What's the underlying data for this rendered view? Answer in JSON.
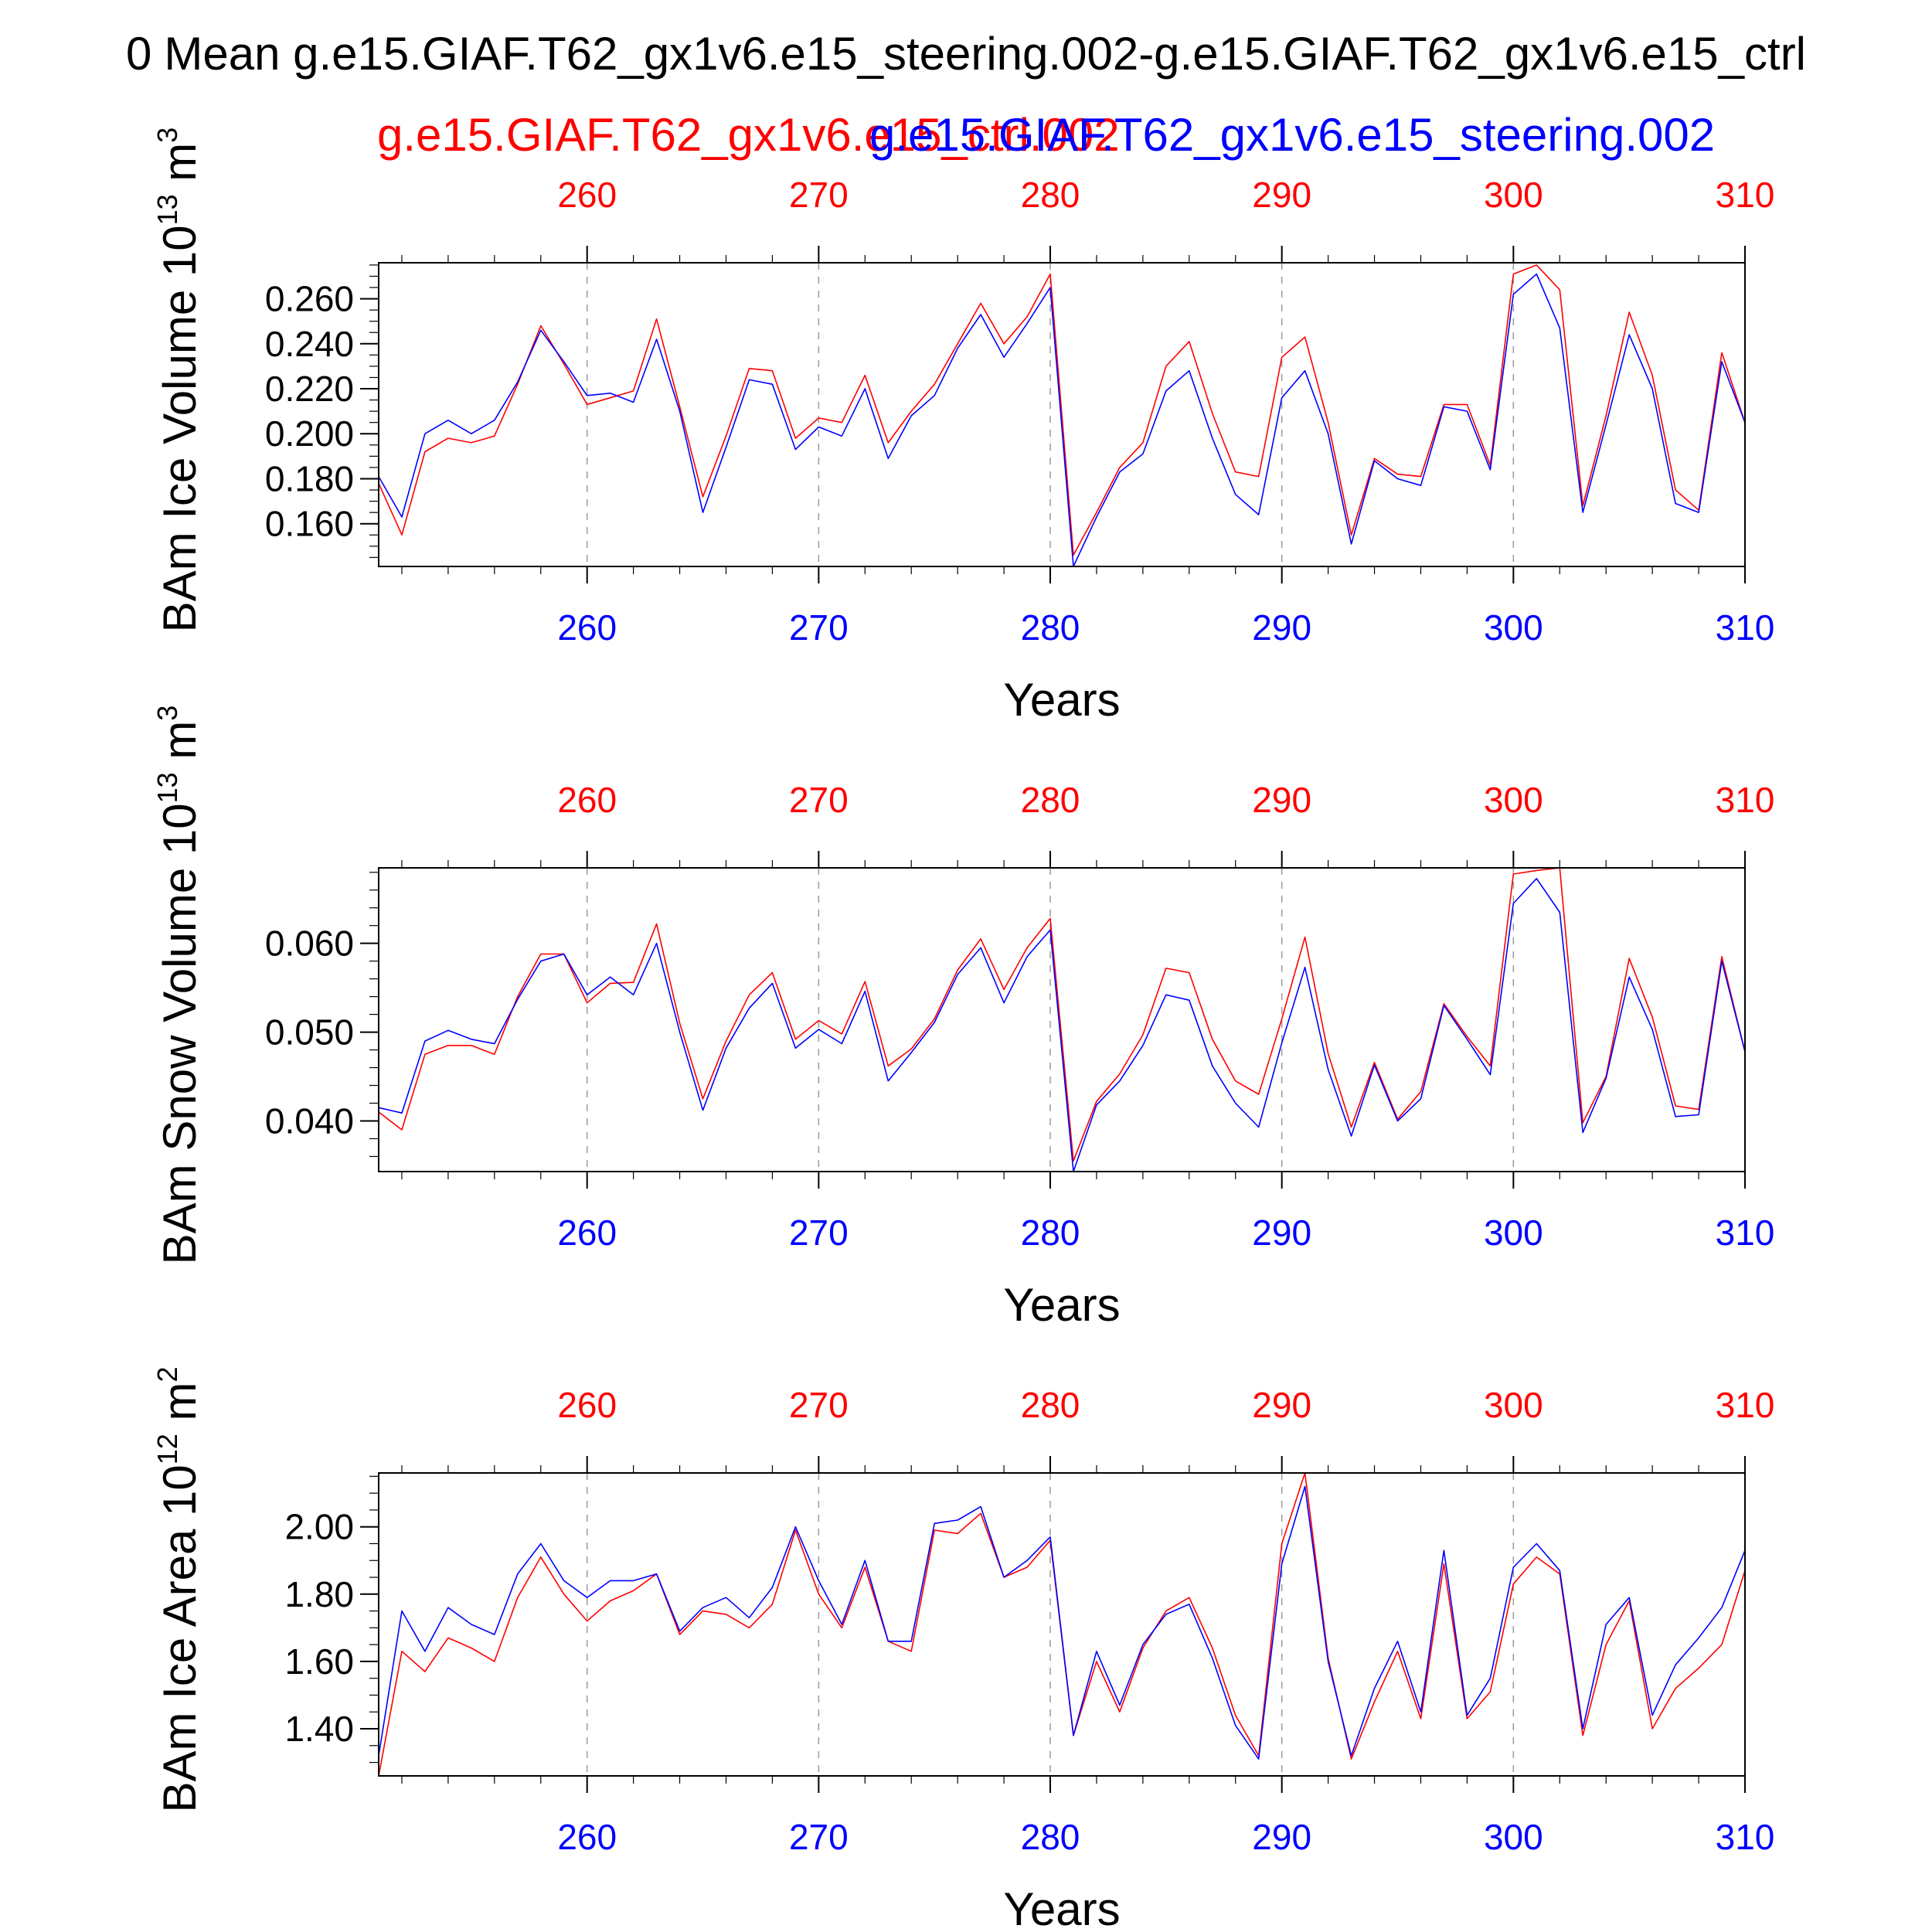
{
  "title": "Mean g.e15.GIAF.T62_gx1v6.e15_steering.002-g.e15.GIAF.T62_gx1v6.e15_ctrl",
  "title_prefix_fragment": "0",
  "subtitles": {
    "ctrl": "g.e15.GIAF.T62_gx1v6.e15_ctrl.002",
    "steering": "g.e15.GIAF.T62_gx1v6.e15_steering.002"
  },
  "colors": {
    "ctrl": "#ff0000",
    "steering": "#0000ff",
    "axis": "#000000",
    "grid": "#9a9a9a"
  },
  "chart_data": [
    {
      "type": "line",
      "ylabel_main": "BAm Ice Volume 10",
      "ylabel_exp": "13",
      "ylabel_unit": " m",
      "ylabel_unit_exp": "3",
      "xlabel": "Years",
      "xlim": [
        251,
        310
      ],
      "ylim": [
        0.141,
        0.276
      ],
      "yticks": [
        0.16,
        0.18,
        0.2,
        0.22,
        0.24,
        0.26
      ],
      "yticklabels": [
        "0.160",
        "0.180",
        "0.200",
        "0.220",
        "0.240",
        "0.260"
      ],
      "yminor_step": 0.005,
      "xticks": [
        260,
        270,
        280,
        290,
        300,
        310
      ],
      "xticklabels": [
        "260",
        "270",
        "280",
        "290",
        "300",
        "310"
      ],
      "grid": "dashed vertical at major x ticks",
      "x": [
        251,
        252,
        253,
        254,
        255,
        256,
        257,
        258,
        259,
        260,
        261,
        262,
        263,
        264,
        265,
        266,
        267,
        268,
        269,
        270,
        271,
        272,
        273,
        274,
        275,
        276,
        277,
        278,
        279,
        280,
        281,
        282,
        283,
        284,
        285,
        286,
        287,
        288,
        289,
        290,
        291,
        292,
        293,
        294,
        295,
        296,
        297,
        298,
        299,
        300,
        301,
        302,
        303,
        304,
        305,
        306,
        307,
        308,
        309,
        310
      ],
      "series": [
        {
          "name": "g.e15.GIAF.T62_gx1v6.e15_ctrl.002",
          "key": "ctrl",
          "values": [
            0.178,
            0.155,
            0.192,
            0.198,
            0.196,
            0.199,
            0.222,
            0.248,
            0.231,
            0.213,
            0.216,
            0.219,
            0.251,
            0.212,
            0.172,
            0.199,
            0.229,
            0.228,
            0.198,
            0.207,
            0.205,
            0.226,
            0.196,
            0.21,
            0.222,
            0.24,
            0.258,
            0.24,
            0.252,
            0.271,
            0.146,
            0.165,
            0.185,
            0.196,
            0.23,
            0.241,
            0.209,
            0.183,
            0.181,
            0.234,
            0.243,
            0.205,
            0.155,
            0.189,
            0.182,
            0.181,
            0.213,
            0.213,
            0.186,
            0.271,
            0.275,
            0.264,
            0.168,
            0.208,
            0.254,
            0.226,
            0.175,
            0.166,
            0.236,
            0.205
          ]
        },
        {
          "name": "g.e15.GIAF.T62_gx1v6.e15_steering.002",
          "key": "steering",
          "values": [
            0.181,
            0.163,
            0.2,
            0.206,
            0.2,
            0.206,
            0.223,
            0.246,
            0.232,
            0.217,
            0.218,
            0.214,
            0.242,
            0.21,
            0.165,
            0.194,
            0.224,
            0.222,
            0.193,
            0.203,
            0.199,
            0.22,
            0.189,
            0.208,
            0.217,
            0.238,
            0.253,
            0.234,
            0.249,
            0.265,
            0.141,
            0.163,
            0.183,
            0.191,
            0.219,
            0.228,
            0.198,
            0.173,
            0.164,
            0.216,
            0.228,
            0.2,
            0.151,
            0.188,
            0.18,
            0.177,
            0.212,
            0.21,
            0.184,
            0.262,
            0.271,
            0.247,
            0.165,
            0.204,
            0.244,
            0.22,
            0.169,
            0.165,
            0.232,
            0.205
          ]
        }
      ]
    },
    {
      "type": "line",
      "ylabel_main": "BAm Snow Volume 10",
      "ylabel_exp": "13",
      "ylabel_unit": " m",
      "ylabel_unit_exp": "3",
      "xlabel": "Years",
      "xlim": [
        251,
        310
      ],
      "ylim": [
        0.0343,
        0.0685
      ],
      "yticks": [
        0.04,
        0.05,
        0.06
      ],
      "yticklabels": [
        "0.040",
        "0.050",
        "0.060"
      ],
      "yminor_step": 0.002,
      "xticks": [
        260,
        270,
        280,
        290,
        300,
        310
      ],
      "xticklabels": [
        "260",
        "270",
        "280",
        "290",
        "300",
        "310"
      ],
      "grid": "dashed vertical at major x ticks",
      "x": [
        251,
        252,
        253,
        254,
        255,
        256,
        257,
        258,
        259,
        260,
        261,
        262,
        263,
        264,
        265,
        266,
        267,
        268,
        269,
        270,
        271,
        272,
        273,
        274,
        275,
        276,
        277,
        278,
        279,
        280,
        281,
        282,
        283,
        284,
        285,
        286,
        287,
        288,
        289,
        290,
        291,
        292,
        293,
        294,
        295,
        296,
        297,
        298,
        299,
        300,
        301,
        302,
        303,
        304,
        305,
        306,
        307,
        308,
        309,
        310
      ],
      "series": [
        {
          "name": "g.e15.GIAF.T62_gx1v6.e15_ctrl.002",
          "key": "ctrl",
          "values": [
            0.041,
            0.039,
            0.0475,
            0.0485,
            0.0485,
            0.0475,
            0.054,
            0.0588,
            0.0588,
            0.0533,
            0.0555,
            0.0556,
            0.0622,
            0.051,
            0.0425,
            0.049,
            0.0542,
            0.0567,
            0.0492,
            0.0513,
            0.0498,
            0.0557,
            0.0462,
            0.0481,
            0.0515,
            0.057,
            0.0605,
            0.0548,
            0.0595,
            0.0628,
            0.0355,
            0.0422,
            0.0453,
            0.0497,
            0.0572,
            0.0567,
            0.0492,
            0.0445,
            0.043,
            0.0515,
            0.0607,
            0.0476,
            0.0393,
            0.0466,
            0.0402,
            0.0433,
            0.0532,
            0.0495,
            0.0462,
            0.0678,
            0.0682,
            0.0685,
            0.0398,
            0.045,
            0.0583,
            0.0517,
            0.0417,
            0.0413,
            0.0585,
            0.0478
          ]
        },
        {
          "name": "g.e15.GIAF.T62_gx1v6.e15_steering.002",
          "key": "steering",
          "values": [
            0.0415,
            0.0409,
            0.049,
            0.0502,
            0.0492,
            0.0487,
            0.0537,
            0.058,
            0.0588,
            0.0542,
            0.0562,
            0.0542,
            0.06,
            0.05,
            0.0412,
            0.0482,
            0.0527,
            0.0555,
            0.0482,
            0.0503,
            0.0487,
            0.0546,
            0.0445,
            0.0477,
            0.0511,
            0.0565,
            0.0595,
            0.0533,
            0.0585,
            0.0615,
            0.0343,
            0.0418,
            0.0445,
            0.0485,
            0.0542,
            0.0536,
            0.0462,
            0.042,
            0.0393,
            0.0488,
            0.0573,
            0.0458,
            0.0383,
            0.0463,
            0.04,
            0.0425,
            0.053,
            0.0492,
            0.0452,
            0.0645,
            0.0673,
            0.0635,
            0.0387,
            0.0448,
            0.0562,
            0.0503,
            0.0405,
            0.0407,
            0.058,
            0.0478
          ]
        }
      ]
    },
    {
      "type": "line",
      "ylabel_main": "BAm Ice Area 10",
      "ylabel_exp": "12",
      "ylabel_unit": " m",
      "ylabel_unit_exp": "2",
      "xlabel": "Years",
      "xlim": [
        251,
        310
      ],
      "ylim": [
        1.26,
        2.16
      ],
      "yticks": [
        1.4,
        1.6,
        1.8,
        2.0
      ],
      "yticklabels": [
        "1.40",
        "1.60",
        "1.80",
        "2.00"
      ],
      "yminor_step": 0.05,
      "xticks": [
        260,
        270,
        280,
        290,
        300,
        310
      ],
      "xticklabels": [
        "260",
        "270",
        "280",
        "290",
        "300",
        "310"
      ],
      "grid": "dashed vertical at major x ticks",
      "x": [
        251,
        252,
        253,
        254,
        255,
        256,
        257,
        258,
        259,
        260,
        261,
        262,
        263,
        264,
        265,
        266,
        267,
        268,
        269,
        270,
        271,
        272,
        273,
        274,
        275,
        276,
        277,
        278,
        279,
        280,
        281,
        282,
        283,
        284,
        285,
        286,
        287,
        288,
        289,
        290,
        291,
        292,
        293,
        294,
        295,
        296,
        297,
        298,
        299,
        300,
        301,
        302,
        303,
        304,
        305,
        306,
        307,
        308,
        309,
        310
      ],
      "series": [
        {
          "name": "g.e15.GIAF.T62_gx1v6.e15_ctrl.002",
          "key": "ctrl",
          "values": [
            1.26,
            1.63,
            1.57,
            1.67,
            1.64,
            1.6,
            1.79,
            1.91,
            1.8,
            1.72,
            1.78,
            1.81,
            1.86,
            1.68,
            1.75,
            1.74,
            1.7,
            1.77,
            1.99,
            1.8,
            1.7,
            1.88,
            1.66,
            1.63,
            1.99,
            1.98,
            2.04,
            1.85,
            1.88,
            1.96,
            1.38,
            1.6,
            1.45,
            1.64,
            1.75,
            1.79,
            1.64,
            1.44,
            1.32,
            1.95,
            2.16,
            1.61,
            1.31,
            1.48,
            1.63,
            1.43,
            1.89,
            1.43,
            1.51,
            1.83,
            1.91,
            1.86,
            1.38,
            1.65,
            1.78,
            1.4,
            1.52,
            1.58,
            1.65,
            1.87
          ]
        },
        {
          "name": "g.e15.GIAF.T62_gx1v6.e15_steering.002",
          "key": "steering",
          "values": [
            1.32,
            1.75,
            1.63,
            1.76,
            1.71,
            1.68,
            1.86,
            1.95,
            1.84,
            1.79,
            1.84,
            1.84,
            1.86,
            1.69,
            1.76,
            1.79,
            1.73,
            1.82,
            2.0,
            1.84,
            1.71,
            1.9,
            1.66,
            1.66,
            2.01,
            2.02,
            2.06,
            1.85,
            1.9,
            1.97,
            1.38,
            1.63,
            1.47,
            1.65,
            1.74,
            1.77,
            1.61,
            1.41,
            1.31,
            1.89,
            2.12,
            1.6,
            1.32,
            1.52,
            1.66,
            1.45,
            1.93,
            1.44,
            1.55,
            1.88,
            1.95,
            1.87,
            1.4,
            1.71,
            1.79,
            1.44,
            1.59,
            1.67,
            1.76,
            1.93
          ]
        }
      ]
    }
  ]
}
